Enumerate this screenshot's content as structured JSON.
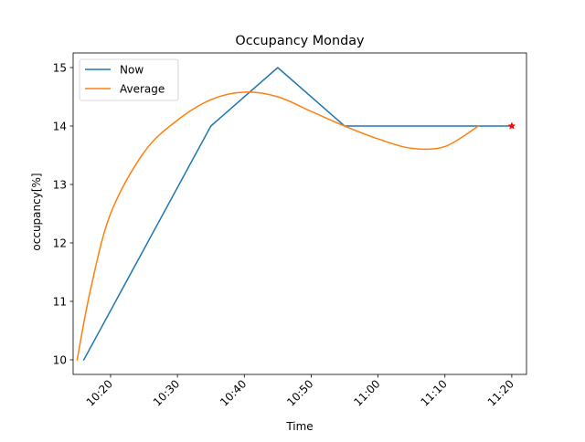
{
  "chart_data": {
    "type": "line",
    "title": "Occupancy Monday",
    "xlabel": "Time",
    "ylabel": "occupancy[%]",
    "ylim": [
      9.75,
      15.25
    ],
    "xlim": [
      "10:14:24",
      "11:22:12"
    ],
    "grid": false,
    "legend_position": "top-left",
    "x_ticks": [
      "10:20",
      "10:30",
      "10:40",
      "10:50",
      "11:00",
      "11:10",
      "11:20"
    ],
    "y_ticks": [
      "10",
      "11",
      "12",
      "13",
      "14",
      "15"
    ],
    "series": [
      {
        "name": "Now",
        "color": "#1f77b4",
        "points": [
          {
            "x": "10:16",
            "y": 10
          },
          {
            "x": "10:35",
            "y": 14
          },
          {
            "x": "10:45",
            "y": 15
          },
          {
            "x": "10:55",
            "y": 14
          },
          {
            "x": "11:20",
            "y": 14
          }
        ]
      },
      {
        "name": "Average",
        "color": "#ff7f0e",
        "points": [
          {
            "x": "10:15",
            "y": 10
          },
          {
            "x": "10:17",
            "y": 11.2
          },
          {
            "x": "10:20",
            "y": 12.5
          },
          {
            "x": "10:25",
            "y": 13.55
          },
          {
            "x": "10:30",
            "y": 14.1
          },
          {
            "x": "10:35",
            "y": 14.45
          },
          {
            "x": "10:40",
            "y": 14.58
          },
          {
            "x": "10:45",
            "y": 14.5
          },
          {
            "x": "10:50",
            "y": 14.25
          },
          {
            "x": "10:55",
            "y": 14
          },
          {
            "x": "11:00",
            "y": 13.78
          },
          {
            "x": "11:05",
            "y": 13.62
          },
          {
            "x": "11:10",
            "y": 13.65
          },
          {
            "x": "11:15",
            "y": 14
          }
        ]
      }
    ],
    "markers": [
      {
        "x": "11:20",
        "y": 14,
        "shape": "star",
        "color": "#ff0000"
      }
    ]
  }
}
